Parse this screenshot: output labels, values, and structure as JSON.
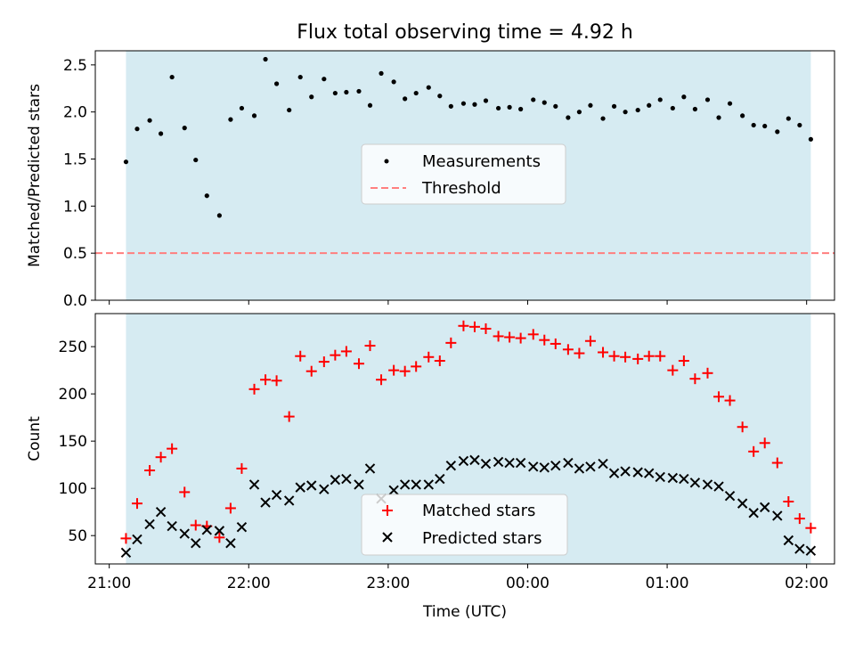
{
  "title": "Flux total observing time = 4.92 h",
  "xlabel": "Time (UTC)",
  "xticks": [
    {
      "label": "21:00",
      "t": 21.0
    },
    {
      "label": "22:00",
      "t": 22.0
    },
    {
      "label": "23:00",
      "t": 23.0
    },
    {
      "label": "00:00",
      "t": 24.0
    },
    {
      "label": "01:00",
      "t": 25.0
    },
    {
      "label": "02:00",
      "t": 26.0
    }
  ],
  "chart_data": [
    {
      "type": "scatter",
      "ylabel": "Matched/Predicted stars",
      "xlim": [
        20.9,
        26.2
      ],
      "ylim": [
        0,
        2.65
      ],
      "yticks": [
        "0.0",
        "0.5",
        "1.0",
        "1.5",
        "2.0",
        "2.5"
      ],
      "grid": false,
      "legend": "center",
      "observing_span": [
        21.12,
        26.03
      ],
      "shading_color": "#add8e6",
      "threshold": {
        "name": "Threshold",
        "value": 0.5,
        "color": "#ff7f7f",
        "style": "dashed"
      },
      "series": [
        {
          "name": "Measurements",
          "color": "#000000",
          "marker": "dot",
          "x": [
            21.12,
            21.2,
            21.29,
            21.37,
            21.45,
            21.54,
            21.62,
            21.7,
            21.79,
            21.87,
            21.95,
            22.04,
            22.12,
            22.2,
            22.29,
            22.37,
            22.45,
            22.54,
            22.62,
            22.7,
            22.79,
            22.87,
            22.95,
            23.04,
            23.12,
            23.2,
            23.29,
            23.37,
            23.45,
            23.54,
            23.62,
            23.7,
            23.79,
            23.87,
            23.95,
            24.04,
            24.12,
            24.2,
            24.29,
            24.37,
            24.45,
            24.54,
            24.62,
            24.7,
            24.79,
            24.87,
            24.95,
            25.04,
            25.12,
            25.2,
            25.29,
            25.37,
            25.45,
            25.54,
            25.62,
            25.7,
            25.79,
            25.87,
            25.95,
            26.03
          ],
          "y": [
            1.47,
            1.82,
            1.91,
            1.77,
            2.37,
            1.83,
            1.49,
            1.11,
            0.9,
            1.92,
            2.04,
            1.96,
            2.56,
            2.3,
            2.02,
            2.37,
            2.16,
            2.35,
            2.2,
            2.21,
            2.22,
            2.07,
            2.41,
            2.32,
            2.14,
            2.2,
            2.26,
            2.17,
            2.06,
            2.09,
            2.08,
            2.12,
            2.04,
            2.05,
            2.03,
            2.13,
            2.1,
            2.06,
            1.94,
            2.0,
            2.07,
            1.93,
            2.06,
            2.0,
            2.02,
            2.07,
            2.13,
            2.04,
            2.16,
            2.03,
            2.13,
            1.94,
            2.09,
            1.96,
            1.86,
            1.85,
            1.79,
            1.93,
            1.86,
            1.71
          ]
        }
      ]
    },
    {
      "type": "scatter",
      "ylabel": "Count",
      "xlim": [
        20.9,
        26.2
      ],
      "ylim": [
        20,
        285
      ],
      "yticks": [
        "50",
        "100",
        "150",
        "200",
        "250"
      ],
      "grid": false,
      "legend": "bottom-center",
      "observing_span": [
        21.12,
        26.03
      ],
      "shading_color": "#add8e6",
      "series": [
        {
          "name": "Matched stars",
          "color": "#ff0000",
          "marker": "plus",
          "x": [
            21.12,
            21.2,
            21.29,
            21.37,
            21.45,
            21.54,
            21.62,
            21.7,
            21.79,
            21.87,
            21.95,
            22.04,
            22.12,
            22.2,
            22.29,
            22.37,
            22.45,
            22.54,
            22.62,
            22.7,
            22.79,
            22.87,
            22.95,
            23.04,
            23.12,
            23.2,
            23.29,
            23.37,
            23.45,
            23.54,
            23.62,
            23.7,
            23.79,
            23.87,
            23.95,
            24.04,
            24.12,
            24.2,
            24.29,
            24.37,
            24.45,
            24.54,
            24.62,
            24.7,
            24.79,
            24.87,
            24.95,
            25.04,
            25.12,
            25.2,
            25.29,
            25.37,
            25.45,
            25.54,
            25.62,
            25.7,
            25.79,
            25.87,
            25.95,
            26.03
          ],
          "y": [
            47,
            84,
            119,
            133,
            142,
            96,
            61,
            60,
            48,
            79,
            121,
            205,
            215,
            214,
            176,
            240,
            224,
            234,
            241,
            245,
            232,
            251,
            215,
            225,
            224,
            229,
            239,
            235,
            254,
            272,
            271,
            269,
            261,
            260,
            259,
            263,
            257,
            253,
            247,
            243,
            256,
            244,
            240,
            239,
            237,
            240,
            240,
            225,
            235,
            216,
            222,
            197,
            193,
            165,
            139,
            148,
            127,
            86,
            68,
            58
          ]
        },
        {
          "name": "Predicted stars",
          "color": "#000000",
          "marker": "x",
          "x": [
            21.12,
            21.2,
            21.29,
            21.37,
            21.45,
            21.54,
            21.62,
            21.7,
            21.79,
            21.87,
            21.95,
            22.04,
            22.12,
            22.2,
            22.29,
            22.37,
            22.45,
            22.54,
            22.62,
            22.7,
            22.79,
            22.87,
            22.95,
            23.04,
            23.12,
            23.2,
            23.29,
            23.37,
            23.45,
            23.54,
            23.62,
            23.7,
            23.79,
            23.87,
            23.95,
            24.04,
            24.12,
            24.2,
            24.29,
            24.37,
            24.45,
            24.54,
            24.62,
            24.7,
            24.79,
            24.87,
            24.95,
            25.04,
            25.12,
            25.2,
            25.29,
            25.37,
            25.45,
            25.54,
            25.62,
            25.7,
            25.79,
            25.87,
            25.95,
            26.03
          ],
          "y": [
            32,
            46,
            62,
            75,
            60,
            52,
            42,
            56,
            55,
            42,
            59,
            104,
            85,
            93,
            87,
            101,
            103,
            99,
            109,
            110,
            104,
            121,
            89,
            98,
            104,
            104,
            104,
            110,
            124,
            129,
            130,
            126,
            128,
            127,
            127,
            123,
            122,
            124,
            127,
            121,
            123,
            126,
            116,
            118,
            117,
            116,
            112,
            111,
            110,
            106,
            104,
            102,
            92,
            84,
            74,
            80,
            71,
            45,
            36,
            34
          ]
        }
      ]
    }
  ]
}
